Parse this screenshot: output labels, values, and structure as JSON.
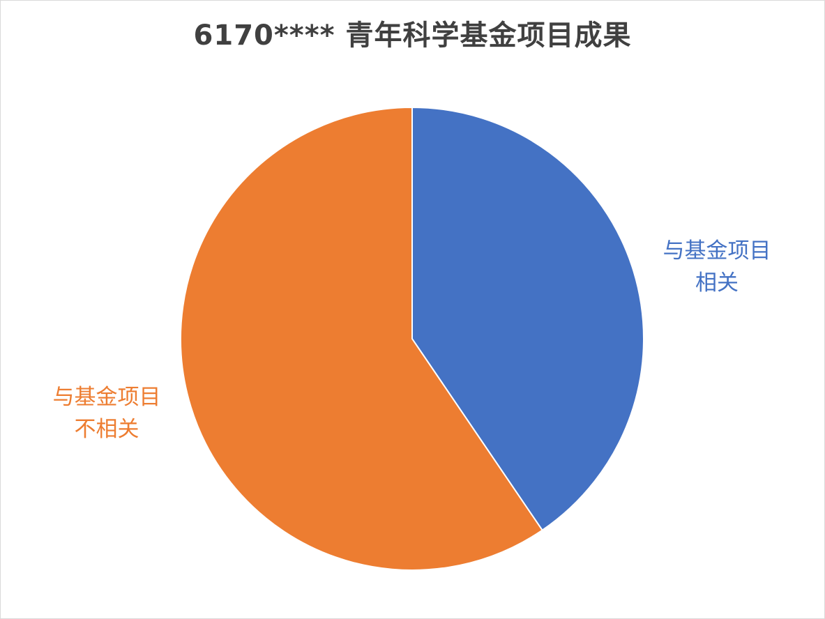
{
  "chart_data": {
    "type": "pie",
    "title": "6170**** 青年科学基金项目成果",
    "series": [
      {
        "values": [
          0.405,
          0.595
        ],
        "labels": [
          [
            "与基金项目",
            "相关"
          ],
          [
            "与基金项目",
            "不相关"
          ]
        ],
        "colors": [
          "#4472C4",
          "#ED7D31"
        ]
      }
    ],
    "start_angle": "top, clockwise",
    "legend": "none (category labels placed beside slices)",
    "value_labels": "none shown"
  }
}
